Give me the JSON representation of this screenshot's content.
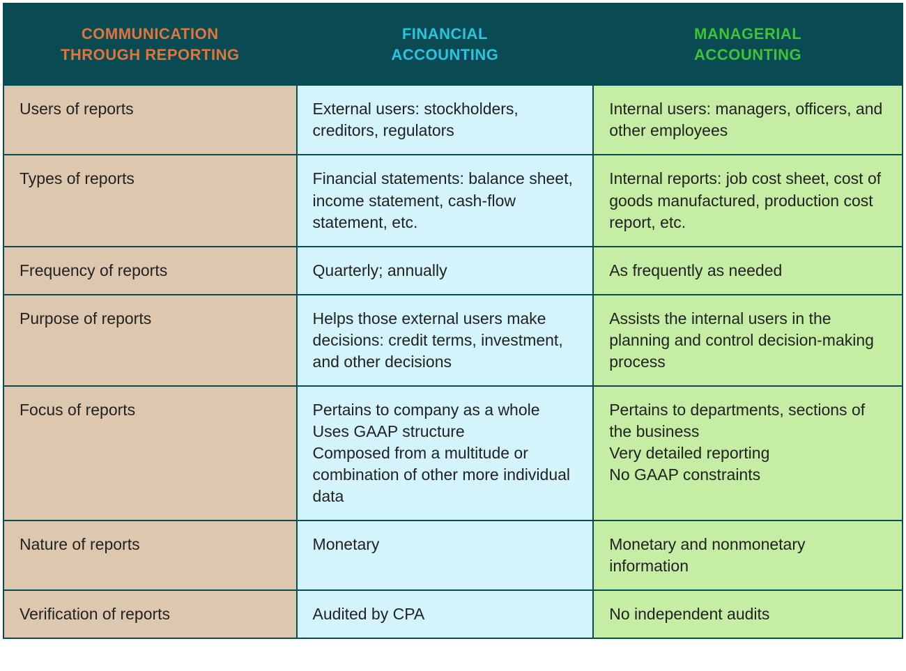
{
  "table": {
    "type": "table",
    "columns": [
      {
        "label": "COMMUNICATION\nTHROUGH REPORTING",
        "header_text_color": "#e3743a",
        "body_bg_color": "#dec7af",
        "width_pct": 32.6
      },
      {
        "label": "FINANCIAL\nACCOUNTING",
        "header_text_color": "#27c5de",
        "body_bg_color": "#d3f4fb",
        "width_pct": 33.0
      },
      {
        "label": "MANAGERIAL\nACCOUNTING",
        "header_text_color": "#3fc434",
        "body_bg_color": "#c5eda3",
        "width_pct": 34.4
      }
    ],
    "header_bg_color": "#0a4a52",
    "border_color": "#0a4a52",
    "border_width": 2,
    "body_text_color": "#222222",
    "header_fontsize": 22,
    "body_fontsize": 23,
    "header_font_weight": "bold",
    "rows": [
      [
        "Users of reports",
        "External users: stockholders, creditors, regulators",
        "Internal users: managers, officers, and other employees"
      ],
      [
        "Types of reports",
        "Financial statements: balance sheet, income statement, cash-flow statement, etc.",
        "Internal reports: job cost sheet, cost of goods manufactured, production cost report, etc."
      ],
      [
        "Frequency of reports",
        "Quarterly; annually",
        "As frequently as needed"
      ],
      [
        "Purpose of reports",
        "Helps those external users make decisions: credit terms, investment, and other decisions",
        "Assists the internal users in the planning and control decision-making process"
      ],
      [
        "Focus of reports",
        "Pertains to company as a whole\nUses GAAP structure\nComposed from a multitude or combination of other more individual data",
        "Pertains to departments, sections of the business\nVery detailed reporting\nNo GAAP constraints"
      ],
      [
        "Nature of reports",
        "Monetary",
        "Monetary and nonmonetary information"
      ],
      [
        "Verification of reports",
        "Audited by CPA",
        "No independent audits"
      ]
    ]
  }
}
